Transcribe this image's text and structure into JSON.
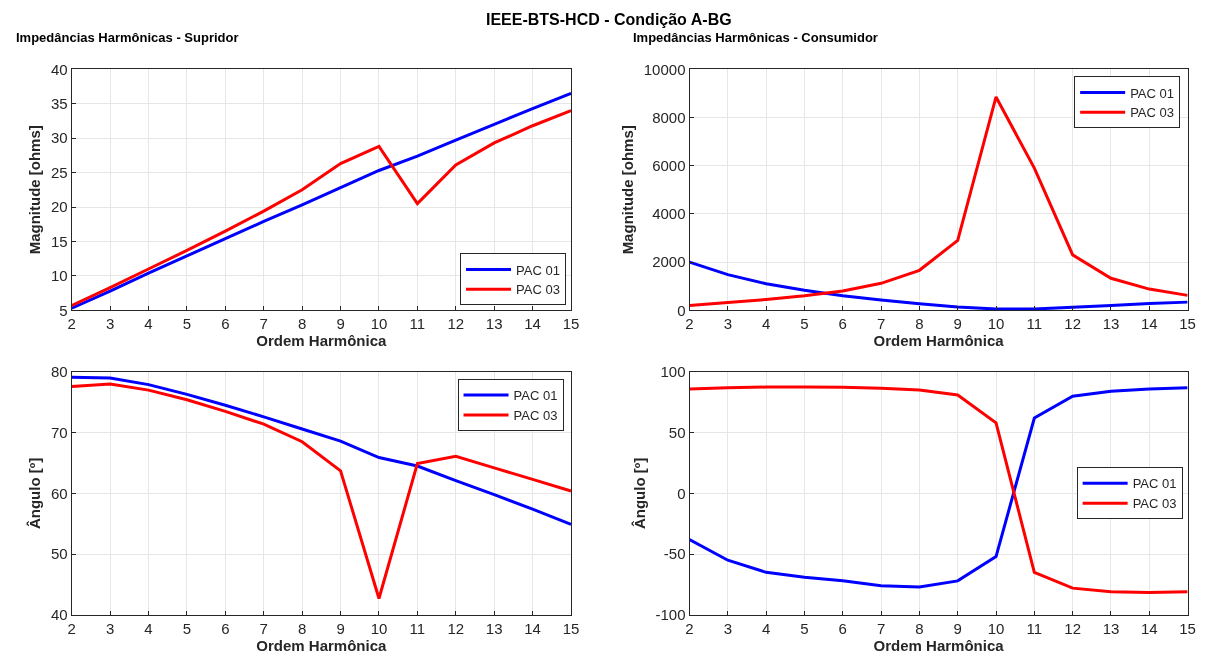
{
  "chart_data": [
    {
      "type": "line",
      "title": "IEEE-BTS-HCD - Condição A-BG",
      "subtitle": "Impedâncias Harmônicas - Supridor",
      "xlabel": "Ordem Harmônica",
      "ylabel": "Magnitude [ohms]",
      "x": [
        2,
        3,
        4,
        5,
        6,
        7,
        8,
        9,
        10,
        11,
        12,
        13,
        14,
        15
      ],
      "xlim": [
        2,
        15
      ],
      "xticks": [
        2,
        3,
        4,
        5,
        6,
        7,
        8,
        9,
        10,
        11,
        12,
        13,
        14,
        15
      ],
      "ylim": [
        5,
        40
      ],
      "yticks": [
        5,
        10,
        15,
        20,
        25,
        30,
        35,
        40
      ],
      "grid": true,
      "legend": "bottom right",
      "series": [
        {
          "name": "PAC 01",
          "color": "#0000ff",
          "values": [
            5.3,
            7.8,
            10.4,
            12.9,
            15.4,
            17.9,
            20.3,
            22.8,
            25.3,
            27.4,
            29.7,
            32.0,
            34.3,
            36.5
          ]
        },
        {
          "name": "PAC 03",
          "color": "#ff0000",
          "values": [
            5.7,
            8.3,
            11.0,
            13.7,
            16.5,
            19.4,
            22.5,
            26.3,
            28.8,
            20.5,
            26.1,
            29.3,
            31.8,
            34.0
          ]
        }
      ]
    },
    {
      "type": "line",
      "subtitle": "Impedâncias Harmônicas - Consumidor",
      "xlabel": "Ordem Harmônica",
      "ylabel": "Magnitude [ohms]",
      "x": [
        2,
        3,
        4,
        5,
        6,
        7,
        8,
        9,
        10,
        11,
        12,
        13,
        14,
        15
      ],
      "xlim": [
        2,
        15
      ],
      "xticks": [
        2,
        3,
        4,
        5,
        6,
        7,
        8,
        9,
        10,
        11,
        12,
        13,
        14,
        15
      ],
      "ylim": [
        0,
        10000
      ],
      "yticks": [
        0,
        2000,
        4000,
        6000,
        8000,
        10000
      ],
      "grid": true,
      "legend": "top right",
      "series": [
        {
          "name": "PAC 01",
          "color": "#0000ff",
          "values": [
            2000,
            1480,
            1100,
            830,
            600,
            430,
            270,
            140,
            50,
            50,
            130,
            200,
            280,
            340
          ]
        },
        {
          "name": "PAC 03",
          "color": "#ff0000",
          "values": [
            200,
            320,
            450,
            600,
            800,
            1120,
            1660,
            2900,
            8850,
            5900,
            2300,
            1330,
            880,
            620
          ]
        }
      ]
    },
    {
      "type": "line",
      "xlabel": "Ordem Harmônica",
      "ylabel": "Ângulo [º]",
      "x": [
        2,
        3,
        4,
        5,
        6,
        7,
        8,
        9,
        10,
        11,
        12,
        13,
        14,
        15
      ],
      "xlim": [
        2,
        15
      ],
      "xticks": [
        2,
        3,
        4,
        5,
        6,
        7,
        8,
        9,
        10,
        11,
        12,
        13,
        14,
        15
      ],
      "ylim": [
        40,
        80
      ],
      "yticks": [
        40,
        50,
        60,
        70,
        80
      ],
      "grid": true,
      "legend": "top right",
      "series": [
        {
          "name": "PAC 01",
          "color": "#0000ff",
          "values": [
            79.1,
            79.0,
            77.9,
            76.3,
            74.5,
            72.6,
            70.6,
            68.6,
            65.9,
            64.5,
            62.1,
            59.8,
            57.4,
            54.9
          ]
        },
        {
          "name": "PAC 03",
          "color": "#ff0000",
          "values": [
            77.6,
            78.0,
            77.0,
            75.4,
            73.5,
            71.4,
            68.5,
            63.7,
            42.7,
            64.9,
            66.1,
            64.2,
            62.3,
            60.4
          ]
        }
      ]
    },
    {
      "type": "line",
      "xlabel": "Ordem Harmônica",
      "ylabel": "Ângulo [º]",
      "x": [
        2,
        3,
        4,
        5,
        6,
        7,
        8,
        9,
        10,
        11,
        12,
        13,
        14,
        15
      ],
      "xlim": [
        2,
        15
      ],
      "xticks": [
        2,
        3,
        4,
        5,
        6,
        7,
        8,
        9,
        10,
        11,
        12,
        13,
        14,
        15
      ],
      "ylim": [
        -100,
        100
      ],
      "yticks": [
        -100,
        -50,
        0,
        50,
        100
      ],
      "grid": true,
      "legend": "right",
      "series": [
        {
          "name": "PAC 01",
          "color": "#0000ff",
          "values": [
            -38,
            -55,
            -65,
            -69,
            -72,
            -76,
            -77,
            -72,
            -52,
            62,
            80,
            84,
            86,
            87
          ]
        },
        {
          "name": "PAC 03",
          "color": "#ff0000",
          "values": [
            86,
            87,
            87.5,
            87.5,
            87.3,
            86.5,
            85,
            81,
            58,
            -65,
            -78,
            -81,
            -81.5,
            -81
          ]
        }
      ]
    }
  ]
}
